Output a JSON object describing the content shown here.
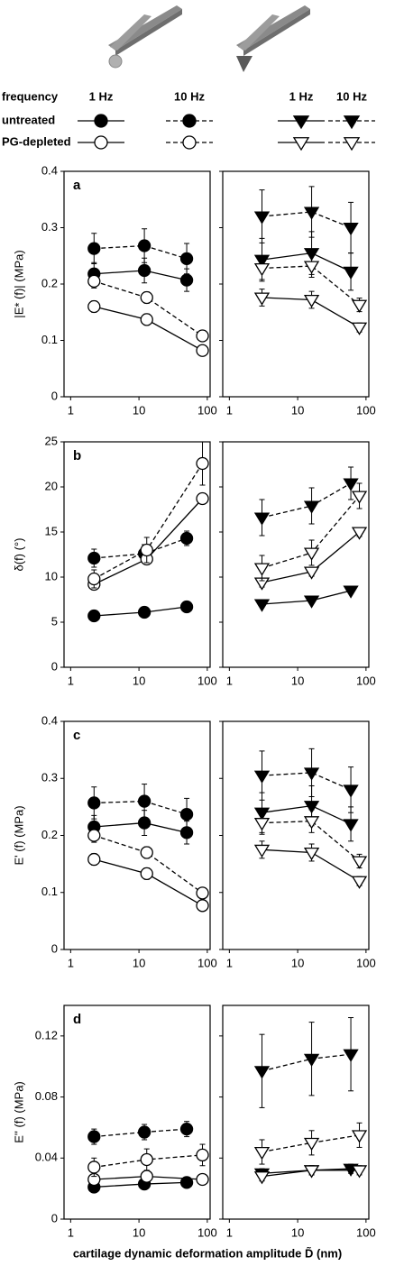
{
  "legend": {
    "header": "frequency",
    "columns": [
      "1 Hz",
      "10 Hz",
      "1 Hz",
      "10 Hz"
    ],
    "rows": [
      "untreated",
      "PG-depleted"
    ]
  },
  "x_label": "cartilage dynamic deformation amplitude D̃ (nm)",
  "chart_data": [
    {
      "type": "line",
      "title": "a",
      "y_label": "|E* (f)| (MPa)",
      "log_x": true,
      "xlim": [
        0.8,
        110
      ],
      "xticks": [
        1,
        10,
        100
      ],
      "ylim": [
        0,
        0.4
      ],
      "yticks": [
        0,
        0.1,
        0.2,
        0.3,
        0.4
      ],
      "show_ytick_labels": true,
      "series": [
        {
          "marker": "circle",
          "filled": true,
          "dashed": false,
          "color": "#000000",
          "x": [
            2.2,
            12,
            50
          ],
          "values": [
            0.218,
            0.224,
            0.207
          ],
          "errors": [
            0.02,
            0.022,
            0.02
          ]
        },
        {
          "marker": "circle",
          "filled": true,
          "dashed": true,
          "color": "#000000",
          "x": [
            2.2,
            12,
            50
          ],
          "values": [
            0.263,
            0.268,
            0.245
          ],
          "errors": [
            0.027,
            0.03,
            0.027
          ]
        },
        {
          "marker": "circle",
          "filled": false,
          "dashed": false,
          "color": "#000000",
          "x": [
            2.2,
            13,
            85
          ],
          "values": [
            0.16,
            0.137,
            0.082
          ],
          "errors": [
            0.01,
            0.01,
            0.005
          ]
        },
        {
          "marker": "circle",
          "filled": false,
          "dashed": true,
          "color": "#000000",
          "x": [
            2.2,
            13,
            85
          ],
          "values": [
            0.205,
            0.176,
            0.108
          ],
          "errors": [
            0.012,
            0.01,
            0.005
          ]
        }
      ]
    },
    {
      "type": "line",
      "log_x": true,
      "xlim": [
        0.8,
        110
      ],
      "xticks": [
        1,
        10,
        100
      ],
      "ylim": [
        0,
        0.4
      ],
      "yticks": [
        0,
        0.1,
        0.2,
        0.3,
        0.4
      ],
      "show_ytick_labels": false,
      "series": [
        {
          "marker": "triangle",
          "filled": true,
          "dashed": false,
          "color": "#000000",
          "x": [
            3,
            16,
            60
          ],
          "values": [
            0.243,
            0.255,
            0.222
          ],
          "errors": [
            0.038,
            0.038,
            0.033
          ]
        },
        {
          "marker": "triangle",
          "filled": true,
          "dashed": true,
          "color": "#000000",
          "x": [
            3,
            16,
            60
          ],
          "values": [
            0.32,
            0.328,
            0.3
          ],
          "errors": [
            0.047,
            0.045,
            0.045
          ]
        },
        {
          "marker": "triangle",
          "filled": false,
          "dashed": false,
          "color": "#000000",
          "x": [
            3,
            16,
            80
          ],
          "values": [
            0.176,
            0.172,
            0.123
          ],
          "errors": [
            0.015,
            0.015,
            0.008
          ]
        },
        {
          "marker": "triangle",
          "filled": false,
          "dashed": true,
          "color": "#000000",
          "x": [
            3,
            16,
            80
          ],
          "values": [
            0.228,
            0.232,
            0.163
          ],
          "errors": [
            0.02,
            0.02,
            0.012
          ]
        }
      ]
    },
    {
      "type": "line",
      "title": "b",
      "y_label": "δ(f) (°)",
      "log_x": true,
      "xlim": [
        0.8,
        110
      ],
      "xticks": [
        1,
        10,
        100
      ],
      "ylim": [
        0,
        25
      ],
      "yticks": [
        0,
        5,
        10,
        15,
        20,
        25
      ],
      "show_ytick_labels": true,
      "series": [
        {
          "marker": "circle",
          "filled": true,
          "dashed": false,
          "color": "#000000",
          "x": [
            2.2,
            12,
            50
          ],
          "values": [
            5.7,
            6.1,
            6.7
          ],
          "errors": [
            0.3,
            0.3,
            0.3
          ]
        },
        {
          "marker": "circle",
          "filled": true,
          "dashed": true,
          "color": "#000000",
          "x": [
            2.2,
            12,
            50
          ],
          "values": [
            12.1,
            12.6,
            14.3
          ],
          "errors": [
            1,
            1,
            0.8
          ]
        },
        {
          "marker": "circle",
          "filled": false,
          "dashed": false,
          "color": "#000000",
          "x": [
            2.2,
            13,
            85
          ],
          "values": [
            9.2,
            12,
            18.7
          ],
          "errors": [
            0.6,
            0.6,
            0.6
          ]
        },
        {
          "marker": "circle",
          "filled": false,
          "dashed": true,
          "color": "#000000",
          "x": [
            2.2,
            13,
            85
          ],
          "values": [
            9.8,
            13,
            22.6
          ],
          "errors": [
            1,
            1.4,
            2.4
          ]
        }
      ]
    },
    {
      "type": "line",
      "log_x": true,
      "xlim": [
        0.8,
        110
      ],
      "xticks": [
        1,
        10,
        100
      ],
      "ylim": [
        0,
        25
      ],
      "yticks": [
        0,
        5,
        10,
        15,
        20,
        25
      ],
      "show_ytick_labels": false,
      "series": [
        {
          "marker": "triangle",
          "filled": true,
          "dashed": false,
          "color": "#000000",
          "x": [
            3,
            16,
            60
          ],
          "values": [
            7,
            7.4,
            8.5
          ],
          "errors": [
            0.3,
            0.3,
            0.3
          ]
        },
        {
          "marker": "triangle",
          "filled": true,
          "dashed": true,
          "color": "#000000",
          "x": [
            3,
            16,
            60
          ],
          "values": [
            16.6,
            17.9,
            20.4
          ],
          "errors": [
            2,
            2,
            1.8
          ]
        },
        {
          "marker": "triangle",
          "filled": false,
          "dashed": false,
          "color": "#000000",
          "x": [
            3,
            16,
            80
          ],
          "values": [
            9.4,
            10.6,
            15
          ],
          "errors": [
            0.5,
            0.5,
            0.5
          ]
        },
        {
          "marker": "triangle",
          "filled": false,
          "dashed": true,
          "color": "#000000",
          "x": [
            3,
            16,
            80
          ],
          "values": [
            11,
            12.7,
            19
          ],
          "errors": [
            1.4,
            1.4,
            1.4
          ]
        }
      ]
    },
    {
      "type": "line",
      "title": "c",
      "y_label": "E' (f) (MPa)",
      "log_x": true,
      "xlim": [
        0.8,
        110
      ],
      "xticks": [
        1,
        10,
        100
      ],
      "ylim": [
        0,
        0.4
      ],
      "yticks": [
        0,
        0.1,
        0.2,
        0.3,
        0.4
      ],
      "show_ytick_labels": true,
      "series": [
        {
          "marker": "circle",
          "filled": true,
          "dashed": false,
          "color": "#000000",
          "x": [
            2.2,
            12,
            50
          ],
          "values": [
            0.215,
            0.222,
            0.205
          ],
          "errors": [
            0.02,
            0.022,
            0.02
          ]
        },
        {
          "marker": "circle",
          "filled": true,
          "dashed": true,
          "color": "#000000",
          "x": [
            2.2,
            12,
            50
          ],
          "values": [
            0.257,
            0.26,
            0.237
          ],
          "errors": [
            0.028,
            0.03,
            0.028
          ]
        },
        {
          "marker": "circle",
          "filled": false,
          "dashed": false,
          "color": "#000000",
          "x": [
            2.2,
            13,
            85
          ],
          "values": [
            0.158,
            0.133,
            0.077
          ],
          "errors": [
            0.01,
            0.01,
            0.005
          ]
        },
        {
          "marker": "circle",
          "filled": false,
          "dashed": true,
          "color": "#000000",
          "x": [
            2.2,
            13,
            85
          ],
          "values": [
            0.2,
            0.17,
            0.099
          ],
          "errors": [
            0.012,
            0.01,
            0.005
          ]
        }
      ]
    },
    {
      "type": "line",
      "log_x": true,
      "xlim": [
        0.8,
        110
      ],
      "xticks": [
        1,
        10,
        100
      ],
      "ylim": [
        0,
        0.4
      ],
      "yticks": [
        0,
        0.1,
        0.2,
        0.3,
        0.4
      ],
      "show_ytick_labels": false,
      "series": [
        {
          "marker": "triangle",
          "filled": true,
          "dashed": false,
          "color": "#000000",
          "x": [
            3,
            16,
            60
          ],
          "values": [
            0.24,
            0.252,
            0.22
          ],
          "errors": [
            0.035,
            0.035,
            0.03
          ]
        },
        {
          "marker": "triangle",
          "filled": true,
          "dashed": true,
          "color": "#000000",
          "x": [
            3,
            16,
            60
          ],
          "values": [
            0.305,
            0.31,
            0.28
          ],
          "errors": [
            0.043,
            0.042,
            0.04
          ]
        },
        {
          "marker": "triangle",
          "filled": false,
          "dashed": false,
          "color": "#000000",
          "x": [
            3,
            16,
            80
          ],
          "values": [
            0.175,
            0.17,
            0.12
          ],
          "errors": [
            0.015,
            0.015,
            0.008
          ]
        },
        {
          "marker": "triangle",
          "filled": false,
          "dashed": true,
          "color": "#000000",
          "x": [
            3,
            16,
            80
          ],
          "values": [
            0.222,
            0.225,
            0.155
          ],
          "errors": [
            0.02,
            0.02,
            0.012
          ]
        }
      ]
    },
    {
      "type": "line",
      "title": "d",
      "y_label": "E'' (f) (MPa)",
      "log_x": true,
      "xlim": [
        0.8,
        110
      ],
      "xticks": [
        1,
        10,
        100
      ],
      "ylim": [
        0,
        0.14
      ],
      "yticks": [
        0,
        0.04,
        0.08,
        0.12
      ],
      "show_ytick_labels": true,
      "series": [
        {
          "marker": "circle",
          "filled": true,
          "dashed": false,
          "color": "#000000",
          "x": [
            2.2,
            12,
            50
          ],
          "values": [
            0.021,
            0.023,
            0.024
          ],
          "errors": [
            0.002,
            0.002,
            0.002
          ]
        },
        {
          "marker": "circle",
          "filled": true,
          "dashed": true,
          "color": "#000000",
          "x": [
            2.2,
            12,
            50
          ],
          "values": [
            0.054,
            0.057,
            0.059
          ],
          "errors": [
            0.005,
            0.005,
            0.005
          ]
        },
        {
          "marker": "circle",
          "filled": false,
          "dashed": false,
          "color": "#000000",
          "x": [
            2.2,
            13,
            85
          ],
          "values": [
            0.026,
            0.028,
            0.026
          ],
          "errors": [
            0.003,
            0.003,
            0.002
          ]
        },
        {
          "marker": "circle",
          "filled": false,
          "dashed": true,
          "color": "#000000",
          "x": [
            2.2,
            13,
            85
          ],
          "values": [
            0.034,
            0.039,
            0.042
          ],
          "errors": [
            0.006,
            0.007,
            0.007
          ]
        }
      ]
    },
    {
      "type": "line",
      "log_x": true,
      "xlim": [
        0.8,
        110
      ],
      "xticks": [
        1,
        10,
        100
      ],
      "ylim": [
        0,
        0.14
      ],
      "yticks": [
        0,
        0.04,
        0.08,
        0.12
      ],
      "show_ytick_labels": false,
      "series": [
        {
          "marker": "triangle",
          "filled": true,
          "dashed": false,
          "color": "#000000",
          "x": [
            3,
            16,
            60
          ],
          "values": [
            0.03,
            0.032,
            0.033
          ],
          "errors": [
            0.003,
            0.003,
            0.003
          ]
        },
        {
          "marker": "triangle",
          "filled": true,
          "dashed": true,
          "color": "#000000",
          "x": [
            3,
            16,
            60
          ],
          "values": [
            0.097,
            0.105,
            0.108
          ],
          "errors": [
            0.024,
            0.024,
            0.024
          ]
        },
        {
          "marker": "triangle",
          "filled": false,
          "dashed": false,
          "color": "#000000",
          "x": [
            3,
            16,
            80
          ],
          "values": [
            0.028,
            0.032,
            0.032
          ],
          "errors": [
            0.003,
            0.003,
            0.003
          ]
        },
        {
          "marker": "triangle",
          "filled": false,
          "dashed": true,
          "color": "#000000",
          "x": [
            3,
            16,
            80
          ],
          "values": [
            0.044,
            0.05,
            0.055
          ],
          "errors": [
            0.008,
            0.008,
            0.008
          ]
        }
      ]
    }
  ]
}
